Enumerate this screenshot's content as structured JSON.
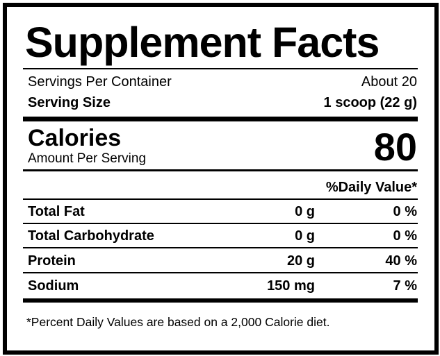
{
  "title": "Supplement Facts",
  "servings_per_container": {
    "label": "Servings Per Container",
    "value": "About 20"
  },
  "serving_size": {
    "label": "Serving Size",
    "value": "1 scoop (22 g)"
  },
  "calories": {
    "label": "Calories",
    "sublabel": "Amount Per Serving",
    "value": "80"
  },
  "daily_value_header": "%Daily Value*",
  "nutrients": [
    {
      "name": "Total Fat",
      "amount": "0 g",
      "dv": "0 %"
    },
    {
      "name": "Total Carbohydrate",
      "amount": "0 g",
      "dv": "0 %"
    },
    {
      "name": "Protein",
      "amount": "20 g",
      "dv": "40 %"
    },
    {
      "name": "Sodium",
      "amount": "150 mg",
      "dv": "7 %"
    }
  ],
  "footnote": "*Percent Daily Values are based on a 2,000 Calorie diet."
}
